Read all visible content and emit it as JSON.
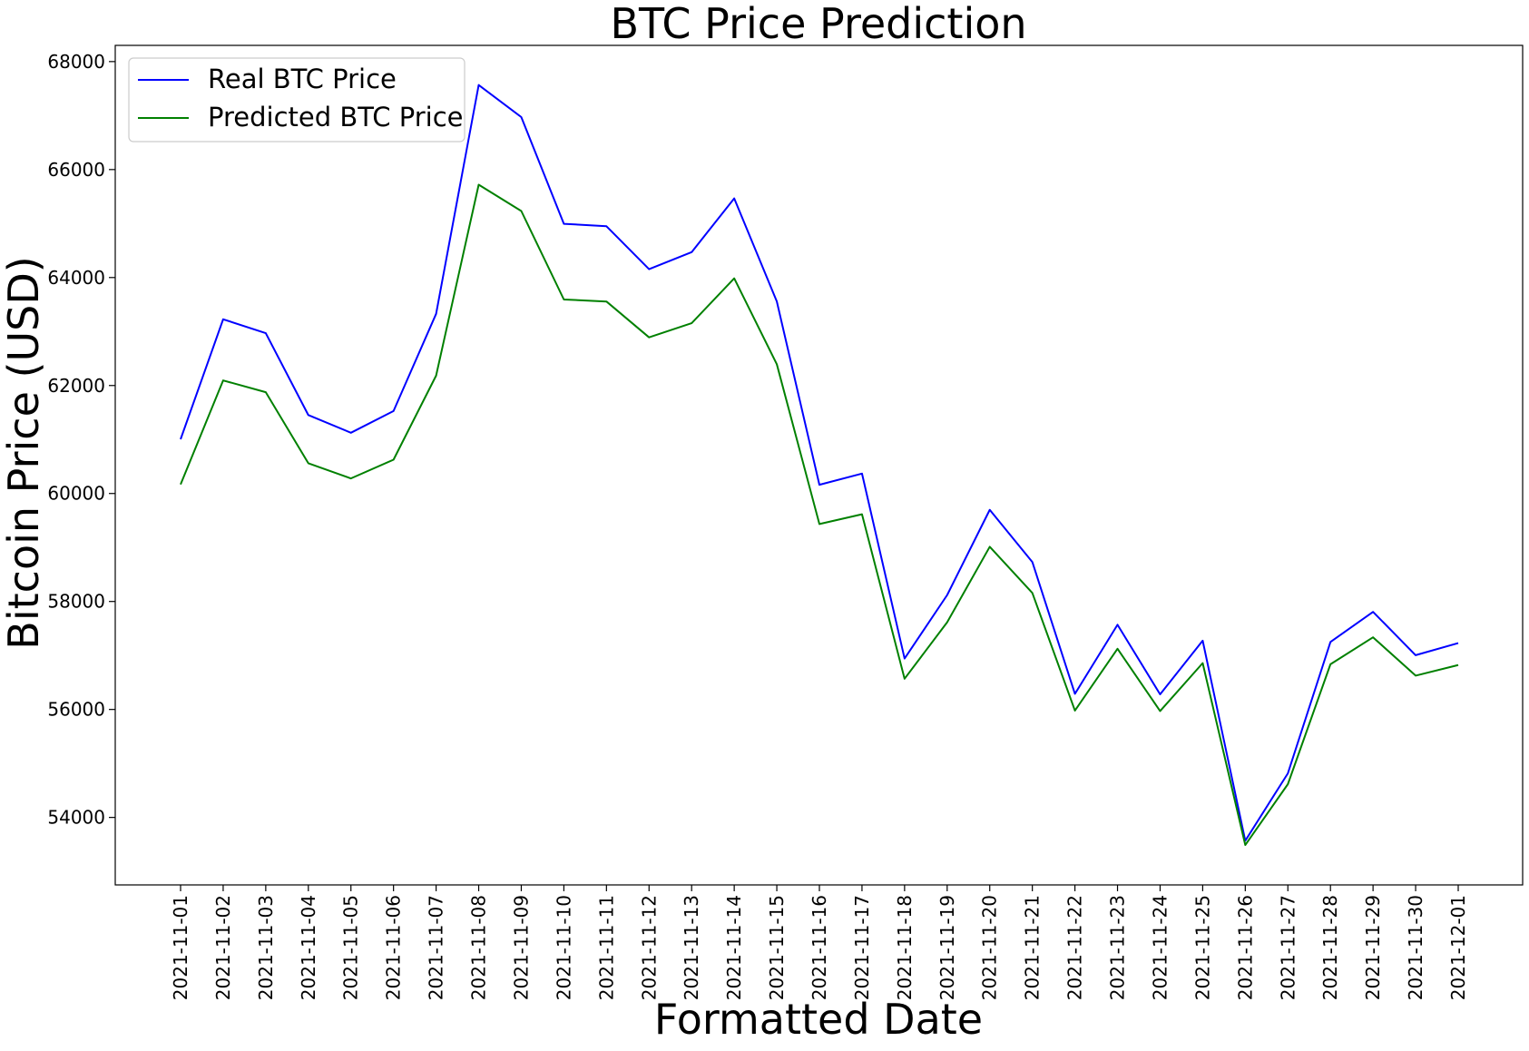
{
  "chart_data": {
    "type": "line",
    "title": "BTC Price Prediction",
    "xlabel": "Formatted Date",
    "ylabel": "Bitcoin Price (USD)",
    "x": [
      "2021-11-01",
      "2021-11-02",
      "2021-11-03",
      "2021-11-04",
      "2021-11-05",
      "2021-11-06",
      "2021-11-07",
      "2021-11-08",
      "2021-11-09",
      "2021-11-10",
      "2021-11-11",
      "2021-11-12",
      "2021-11-13",
      "2021-11-14",
      "2021-11-15",
      "2021-11-16",
      "2021-11-17",
      "2021-11-18",
      "2021-11-19",
      "2021-11-20",
      "2021-11-21",
      "2021-11-22",
      "2021-11-23",
      "2021-11-24",
      "2021-11-25",
      "2021-11-26",
      "2021-11-27",
      "2021-11-28",
      "2021-11-29",
      "2021-11-30",
      "2021-12-01"
    ],
    "ylim": [
      52750,
      68300
    ],
    "yticks": [
      54000,
      56000,
      58000,
      60000,
      62000,
      64000,
      66000,
      68000
    ],
    "grid": false,
    "legend": "top-left",
    "series": [
      {
        "name": "Real BTC Price",
        "color": "#0000ff",
        "values": [
          61004,
          63227,
          62970,
          61452,
          61125,
          61527,
          63327,
          67566,
          66972,
          64995,
          64950,
          64155,
          64470,
          65466,
          63557,
          60161,
          60369,
          56943,
          58119,
          59697,
          58731,
          56289,
          57569,
          56280,
          57274,
          53569,
          54816,
          57249,
          57807,
          57005,
          57229
        ]
      },
      {
        "name": "Predicted BTC Price",
        "color": "#008000",
        "values": [
          60167,
          62094,
          61876,
          60560,
          60279,
          60626,
          62183,
          65720,
          65232,
          63593,
          63556,
          62892,
          63154,
          63985,
          62394,
          59435,
          59615,
          56569,
          57614,
          59013,
          58158,
          55979,
          57124,
          55970,
          56858,
          53489,
          54616,
          56837,
          57336,
          56626,
          56823
        ]
      }
    ]
  }
}
